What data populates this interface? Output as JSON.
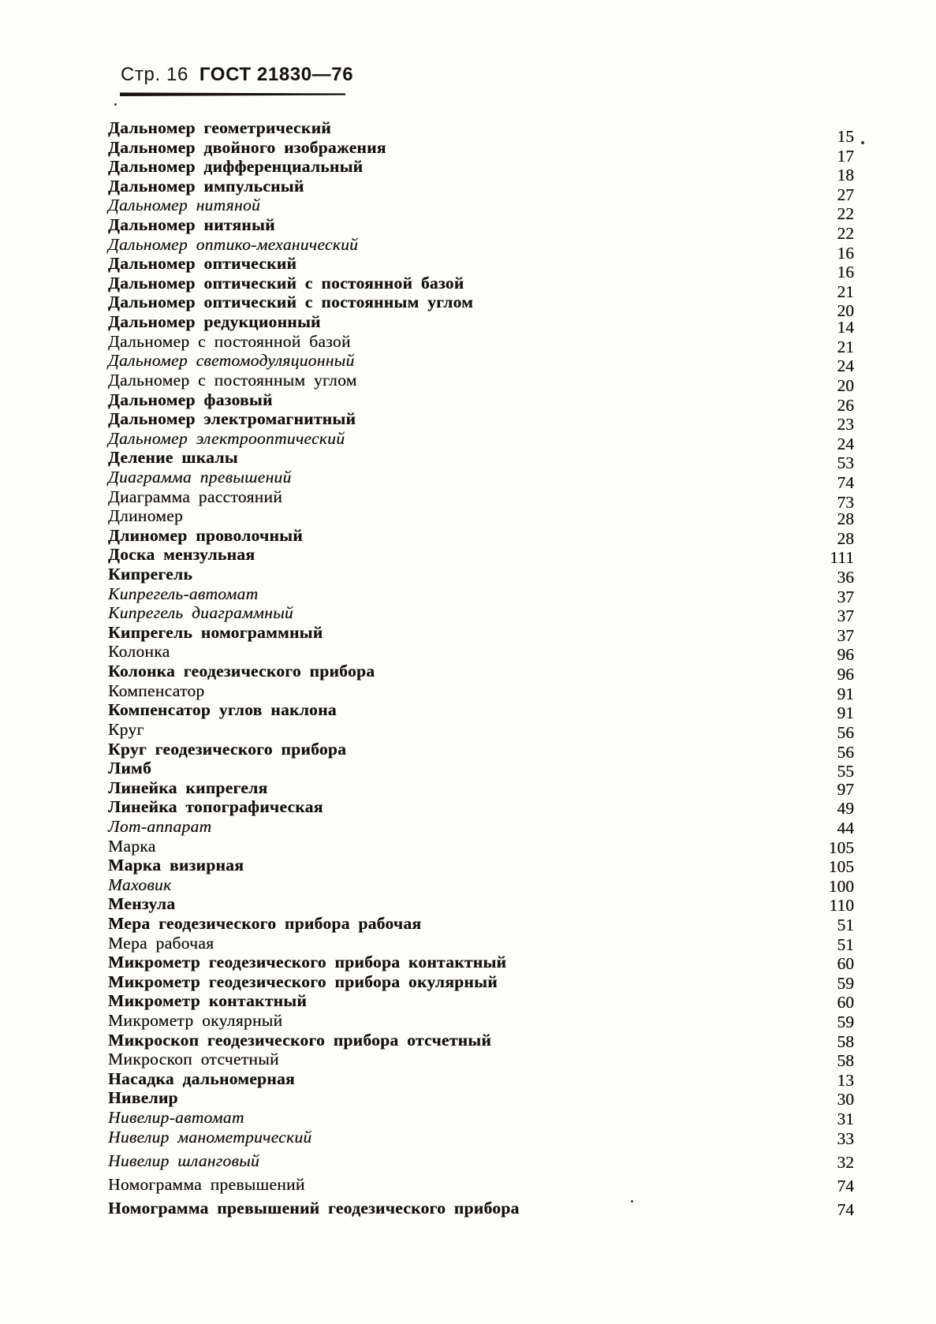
{
  "document": {
    "header": {
      "page_label": "Стр. 16",
      "standard_label": "ГОСТ 21830—76"
    },
    "colors": {
      "paper": "#fdfdfb",
      "ink": "#17120e"
    },
    "index": {
      "entries": [
        {
          "term": "Дальномер геометрический",
          "page": "15",
          "style": "bold"
        },
        {
          "term": "Дальномер двойного изображения",
          "page": "17",
          "style": "bold"
        },
        {
          "term": "Дальномер дифференциальный",
          "page": "18",
          "style": "bold"
        },
        {
          "term": "Дальномер импульсный",
          "page": "27",
          "style": "bold"
        },
        {
          "term": "Дальномер нитяной",
          "page": "22",
          "style": "italic"
        },
        {
          "term": "Дальномер нитяный",
          "page": "22",
          "style": "bold"
        },
        {
          "term": "Дальномер оптико-механический",
          "page": "16",
          "style": "italic"
        },
        {
          "term": "Дальномер оптический",
          "page": "16",
          "style": "bold"
        },
        {
          "term": "Дальномер оптический с постоянной базой",
          "page": "21",
          "style": "bold"
        },
        {
          "term": "Дальномер оптический с постоянным углом",
          "page": "20",
          "style": "bold"
        },
        {
          "term": "Дальномер редукционный",
          "page": "14",
          "style": "bold"
        },
        {
          "term": "Дальномер с постоянной базой",
          "page": "21",
          "style": "regular"
        },
        {
          "term": "Дальномер светомодуляционный",
          "page": "24",
          "style": "italic"
        },
        {
          "term": "Дальномер с постоянным углом",
          "page": "20",
          "style": "regular"
        },
        {
          "term": "Дальномер фазовый",
          "page": "26",
          "style": "bold"
        },
        {
          "term": "Дальномер электромагнитный",
          "page": "23",
          "style": "bold"
        },
        {
          "term": "Дальномер электрооптический",
          "page": "24",
          "style": "italic"
        },
        {
          "term": "Деление шкалы",
          "page": "53",
          "style": "bold"
        },
        {
          "term": "Диаграмма превышений",
          "page": "74",
          "style": "italic"
        },
        {
          "term": "Диаграмма расстояний",
          "page": "73",
          "style": "regular"
        },
        {
          "term": "Длиномер",
          "page": "28",
          "style": "regular"
        },
        {
          "term": "Длиномер проволочный",
          "page": "28",
          "style": "bold"
        },
        {
          "term": "Доска мензульная",
          "page": "111",
          "style": "bold"
        },
        {
          "term": "Кипрегель",
          "page": "36",
          "style": "bold"
        },
        {
          "term": "Кипрегель-автомат",
          "page": "37",
          "style": "italic"
        },
        {
          "term": "Кипрегель диаграммный",
          "page": "37",
          "style": "italic"
        },
        {
          "term": "Кипрегель номограммный",
          "page": "37",
          "style": "bold"
        },
        {
          "term": "Колонка",
          "page": "96",
          "style": "regular"
        },
        {
          "term": "Колонка геодезического прибора",
          "page": "96",
          "style": "bold"
        },
        {
          "term": "Компенсатор",
          "page": "91",
          "style": "regular"
        },
        {
          "term": "Компенсатор углов наклона",
          "page": "91",
          "style": "bold"
        },
        {
          "term": "Круг",
          "page": "56",
          "style": "regular"
        },
        {
          "term": "Круг геодезического прибора",
          "page": "56",
          "style": "bold"
        },
        {
          "term": "Лимб",
          "page": "55",
          "style": "bold"
        },
        {
          "term": "Линейка кипрегеля",
          "page": "97",
          "style": "bold"
        },
        {
          "term": "Линейка топографическая",
          "page": "49",
          "style": "bold"
        },
        {
          "term": "Лот-аппарат",
          "page": "44",
          "style": "italic"
        },
        {
          "term": "Марка",
          "page": "105",
          "style": "regular"
        },
        {
          "term": "Марка визирная",
          "page": "105",
          "style": "bold"
        },
        {
          "term": "Маховик",
          "page": "100",
          "style": "italic"
        },
        {
          "term": "Мензула",
          "page": "110",
          "style": "bold"
        },
        {
          "term": "Мера геодезического прибора рабочая",
          "page": "51",
          "style": "bold"
        },
        {
          "term": "Мера рабочая",
          "page": "51",
          "style": "regular"
        },
        {
          "term": "Микрометр геодезического прибора контактный",
          "page": "60",
          "style": "bold"
        },
        {
          "term": "Микрометр геодезического прибора окулярный",
          "page": "59",
          "style": "bold"
        },
        {
          "term": "Микрометр контактный",
          "page": "60",
          "style": "bold"
        },
        {
          "term": "Микрометр окулярный",
          "page": "59",
          "style": "regular"
        },
        {
          "term": "Микроскоп геодезического прибора отсчетный",
          "page": "58",
          "style": "bold"
        },
        {
          "term": "Микроскоп отсчетный",
          "page": "58",
          "style": "regular"
        },
        {
          "term": "Насадка дальномерная",
          "page": "13",
          "style": "bold"
        },
        {
          "term": "Нивелир",
          "page": "30",
          "style": "bold"
        },
        {
          "term": "Нивелир-автомат",
          "page": "31",
          "style": "italic"
        },
        {
          "term": "Нивелир манометрический",
          "page": "33",
          "style": "italic"
        },
        {
          "term": "Нивелир шланговый",
          "page": "32",
          "style": "italic"
        },
        {
          "term": "Номограмма превышений",
          "page": "74",
          "style": "regular"
        },
        {
          "term": "Номограмма превышений геодезического прибора",
          "page": "74",
          "style": "bold"
        }
      ]
    }
  }
}
